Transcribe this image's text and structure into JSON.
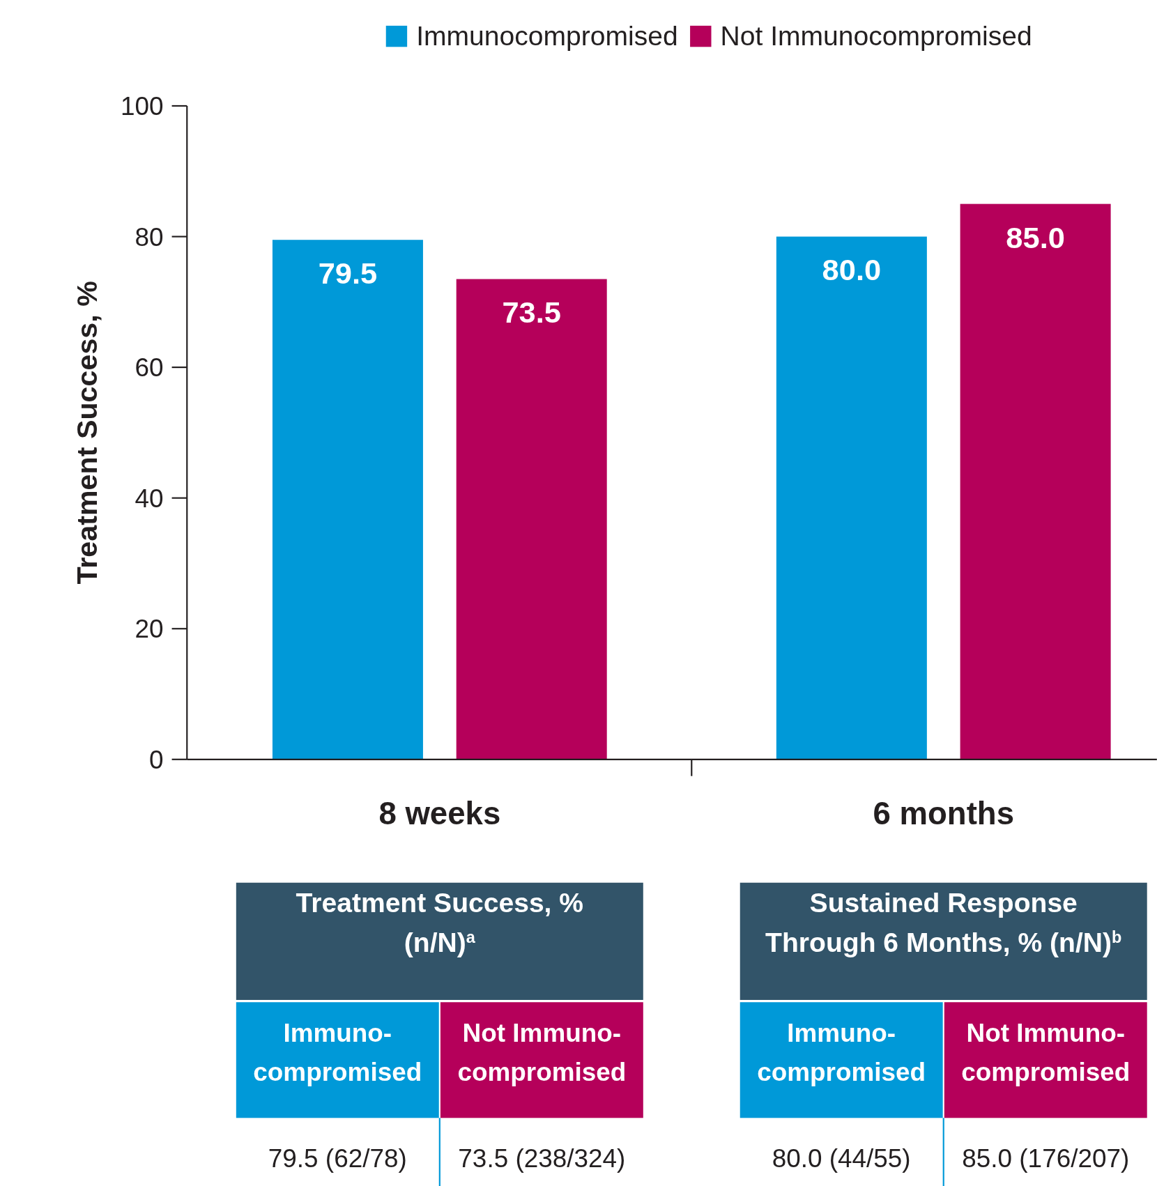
{
  "chart_data": {
    "type": "bar",
    "ylabel": "Treatment Success, %",
    "categories": [
      "8 weeks",
      "6 months"
    ],
    "series": [
      {
        "name": "Immunocompromised",
        "color": "#0099d8",
        "values": [
          79.5,
          80.0
        ],
        "value_labels": [
          "79.5",
          "80.0"
        ]
      },
      {
        "name": "Not Immunocompromised",
        "color": "#b5005a",
        "values": [
          73.5,
          85.0
        ],
        "value_labels": [
          "73.5",
          "85.0"
        ]
      }
    ],
    "ylim": [
      0,
      100
    ],
    "yticks": [
      0,
      20,
      40,
      60,
      80,
      100
    ],
    "grid": false,
    "legend": "top",
    "annotations": [
      "Treatment Success, %\n(n/N)$^{a}$",
      "Sustained Response\nThrough 6 Months, % (n/N)$^{b}$",
      "Immuno-\ncompromised",
      "Not Immuno-\ncompromised",
      "Immuno-\ncompromised",
      "Not Immuno-\ncompromised",
      "79.5 (62/78)",
      "73.5 (238/324)",
      "80.0 (44/55)",
      "85.0 (176/207)"
    ]
  }
}
